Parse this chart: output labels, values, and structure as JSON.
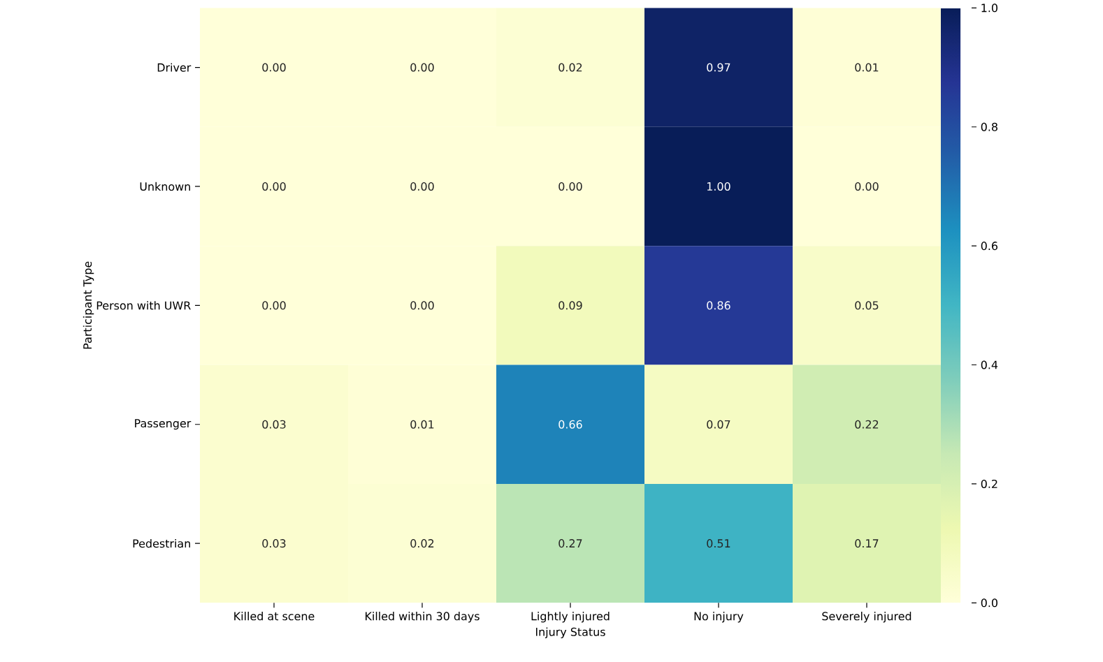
{
  "chart_data": {
    "type": "heatmap",
    "xlabel": "Injury Status",
    "ylabel": "Participant Type",
    "categories": [
      "Killed at scene",
      "Killed within 30 days",
      "Lightly injured",
      "No injury",
      "Severely injured"
    ],
    "y_categories": [
      "Driver",
      "Unknown",
      "Person with UWR",
      "Passenger",
      "Pedestrian"
    ],
    "cells": [
      [
        0.0,
        0.0,
        0.02,
        0.97,
        0.01
      ],
      [
        0.0,
        0.0,
        0.0,
        1.0,
        0.0
      ],
      [
        0.0,
        0.0,
        0.09,
        0.86,
        0.05
      ],
      [
        0.03,
        0.01,
        0.66,
        0.07,
        0.22
      ],
      [
        0.03,
        0.02,
        0.27,
        0.51,
        0.17
      ]
    ],
    "cell_labels": [
      [
        "0.00",
        "0.00",
        "0.02",
        "0.97",
        "0.01"
      ],
      [
        "0.00",
        "0.00",
        "0.00",
        "1.00",
        "0.00"
      ],
      [
        "0.00",
        "0.00",
        "0.09",
        "0.86",
        "0.05"
      ],
      [
        "0.03",
        "0.01",
        "0.66",
        "0.07",
        "0.22"
      ],
      [
        "0.03",
        "0.02",
        "0.27",
        "0.51",
        "0.17"
      ]
    ],
    "clim": [
      0,
      1
    ],
    "cticks": [
      {
        "value": 0,
        "label": "0.0"
      },
      {
        "value": 0.2,
        "label": "0.2"
      },
      {
        "value": 0.4,
        "label": "0.4"
      },
      {
        "value": 0.6,
        "label": "0.6"
      },
      {
        "value": 0.8,
        "label": "0.8"
      },
      {
        "value": 1,
        "label": "1.0"
      }
    ]
  }
}
